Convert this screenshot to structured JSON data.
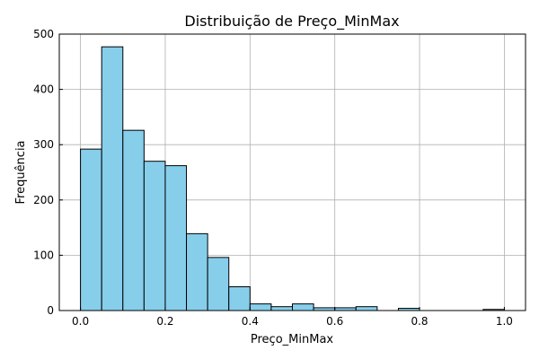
{
  "chart_data": {
    "type": "bar",
    "title": "Distribuição de Preço_MinMax",
    "xlabel": "Preço_MinMax",
    "ylabel": "Frequência",
    "xlim": [
      -0.05,
      1.05
    ],
    "ylim": [
      0,
      500
    ],
    "grid": true,
    "x_ticks": [
      "0.0",
      "0.2",
      "0.4",
      "0.6",
      "0.8",
      "1.0"
    ],
    "y_ticks": [
      "0",
      "100",
      "200",
      "300",
      "400",
      "500"
    ],
    "bin_edges": [
      0.0,
      0.05,
      0.1,
      0.15,
      0.2,
      0.25,
      0.3,
      0.35,
      0.4,
      0.45,
      0.5,
      0.55,
      0.6,
      0.65,
      0.7,
      0.75,
      0.8,
      0.85,
      0.9,
      0.95,
      1.0
    ],
    "values": [
      292,
      477,
      326,
      270,
      262,
      139,
      96,
      43,
      12,
      7,
      12,
      5,
      5,
      7,
      0,
      4,
      0,
      0,
      0,
      2
    ],
    "colors": {
      "bar_fill": "#87ceeb",
      "bar_edge": "#000000",
      "grid": "#b0b0b0"
    }
  }
}
